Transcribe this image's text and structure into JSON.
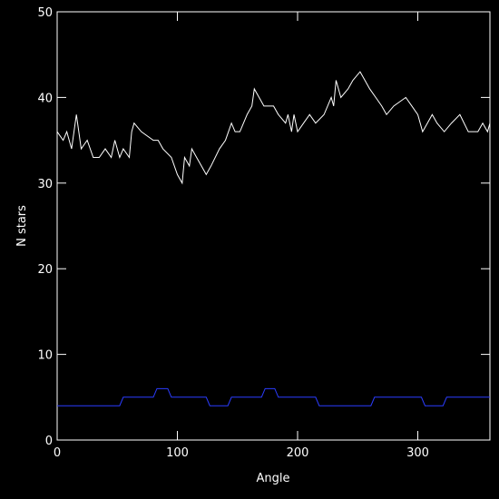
{
  "chart_data": {
    "type": "line",
    "xlabel": "Angle",
    "ylabel": "N stars",
    "xlim": [
      0,
      360
    ],
    "ylim": [
      0,
      50
    ],
    "xticks": [
      0,
      100,
      200,
      300
    ],
    "yticks": [
      0,
      10,
      20,
      30,
      40,
      50
    ],
    "series": [
      {
        "color": "#ffffff",
        "x": [
          0,
          5,
          8,
          12,
          16,
          18,
          20,
          25,
          30,
          35,
          40,
          45,
          48,
          52,
          55,
          60,
          62,
          64,
          70,
          80,
          84,
          88,
          95,
          100,
          104,
          106,
          110,
          112,
          116,
          120,
          124,
          128,
          135,
          140,
          145,
          148,
          152,
          158,
          162,
          164,
          168,
          172,
          180,
          184,
          190,
          192,
          195,
          197,
          200,
          205,
          210,
          215,
          222,
          228,
          230,
          232,
          236,
          242,
          246,
          252,
          256,
          260,
          265,
          270,
          274,
          280,
          290,
          295,
          300,
          304,
          308,
          312,
          316,
          322,
          328,
          335,
          342,
          350,
          354,
          358,
          360
        ],
        "values": [
          36,
          35,
          36,
          34,
          38,
          36,
          34,
          35,
          33,
          33,
          34,
          33,
          35,
          33,
          34,
          33,
          36,
          37,
          36,
          35,
          35,
          34,
          33,
          31,
          30,
          33,
          32,
          34,
          33,
          32,
          31,
          32,
          34,
          35,
          37,
          36,
          36,
          38,
          39,
          41,
          40,
          39,
          39,
          38,
          37,
          38,
          36,
          38,
          36,
          37,
          38,
          37,
          38,
          40,
          39,
          42,
          40,
          41,
          42,
          43,
          42,
          41,
          40,
          39,
          38,
          39,
          40,
          39,
          38,
          36,
          37,
          38,
          37,
          36,
          37,
          38,
          36,
          36,
          37,
          36,
          37
        ]
      },
      {
        "color": "#2b3cff",
        "x": [
          0,
          52,
          55,
          80,
          83,
          92,
          95,
          124,
          127,
          142,
          145,
          170,
          173,
          181,
          184,
          215,
          218,
          261,
          264,
          303,
          306,
          321,
          324,
          360
        ],
        "values": [
          4,
          4,
          5,
          5,
          6,
          6,
          5,
          5,
          4,
          4,
          5,
          5,
          6,
          6,
          5,
          5,
          4,
          4,
          5,
          5,
          4,
          4,
          5,
          5
        ]
      }
    ]
  }
}
